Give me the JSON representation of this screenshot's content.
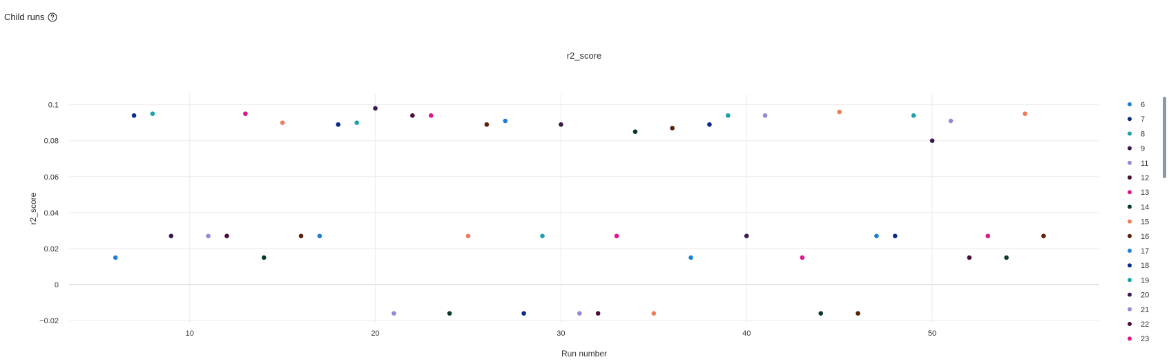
{
  "header": {
    "title": "Child runs",
    "help_icon": "question-circle-icon"
  },
  "chart_data": {
    "type": "scatter",
    "title": "r2_score",
    "xlabel": "Run number",
    "ylabel": "r2_score",
    "xlim": [
      3.5,
      59.0
    ],
    "ylim": [
      -0.0215,
      0.106
    ],
    "xticks": [
      10,
      20,
      30,
      40,
      50
    ],
    "yticks": [
      -0.02,
      0,
      0.02,
      0.04,
      0.06,
      0.08,
      0.1
    ],
    "ytick_labels": [
      "−0.02",
      "0",
      "0.02",
      "0.04",
      "0.06",
      "0.08",
      "0.1"
    ],
    "grid": true,
    "legend_position": "right",
    "points": [
      {
        "x": 6,
        "y": 0.015,
        "color": "#1f7fd4"
      },
      {
        "x": 7,
        "y": 0.094,
        "color": "#0a2a8c"
      },
      {
        "x": 8,
        "y": 0.095,
        "color": "#1aa3a8"
      },
      {
        "x": 9,
        "y": 0.027,
        "color": "#3a1a4e"
      },
      {
        "x": 11,
        "y": 0.027,
        "color": "#9a86d9"
      },
      {
        "x": 12,
        "y": 0.027,
        "color": "#4a0d35"
      },
      {
        "x": 13,
        "y": 0.095,
        "color": "#e0148c"
      },
      {
        "x": 14,
        "y": 0.015,
        "color": "#0a3a26"
      },
      {
        "x": 15,
        "y": 0.09,
        "color": "#ef7b5a"
      },
      {
        "x": 16,
        "y": 0.027,
        "color": "#5a2108"
      },
      {
        "x": 17,
        "y": 0.027,
        "color": "#1f7fd4"
      },
      {
        "x": 18,
        "y": 0.089,
        "color": "#0a2a8c"
      },
      {
        "x": 19,
        "y": 0.09,
        "color": "#1aa3a8"
      },
      {
        "x": 20,
        "y": 0.098,
        "color": "#3a1a4e"
      },
      {
        "x": 21,
        "y": -0.016,
        "color": "#9a86d9"
      },
      {
        "x": 22,
        "y": 0.094,
        "color": "#4a0d35"
      },
      {
        "x": 23,
        "y": 0.094,
        "color": "#e0148c"
      },
      {
        "x": 24,
        "y": -0.016,
        "color": "#0a3a26"
      },
      {
        "x": 25,
        "y": 0.027,
        "color": "#ef7b5a"
      },
      {
        "x": 26,
        "y": 0.089,
        "color": "#5a2108"
      },
      {
        "x": 27,
        "y": 0.091,
        "color": "#1f7fd4"
      },
      {
        "x": 28,
        "y": -0.016,
        "color": "#0a2a8c"
      },
      {
        "x": 29,
        "y": 0.027,
        "color": "#1aa3a8"
      },
      {
        "x": 30,
        "y": 0.089,
        "color": "#3a1a4e"
      },
      {
        "x": 31,
        "y": -0.016,
        "color": "#9a86d9"
      },
      {
        "x": 32,
        "y": -0.016,
        "color": "#4a0d35"
      },
      {
        "x": 33,
        "y": 0.027,
        "color": "#e0148c"
      },
      {
        "x": 34,
        "y": 0.085,
        "color": "#0a3a26"
      },
      {
        "x": 35,
        "y": -0.016,
        "color": "#ef7b5a"
      },
      {
        "x": 36,
        "y": 0.087,
        "color": "#5a2108"
      },
      {
        "x": 37,
        "y": 0.015,
        "color": "#1f7fd4"
      },
      {
        "x": 38,
        "y": 0.089,
        "color": "#0a2a8c"
      },
      {
        "x": 39,
        "y": 0.094,
        "color": "#1aa3a8"
      },
      {
        "x": 40,
        "y": 0.027,
        "color": "#3a1a4e"
      },
      {
        "x": 41,
        "y": 0.094,
        "color": "#9a86d9"
      },
      {
        "x": 43,
        "y": 0.015,
        "color": "#e0148c"
      },
      {
        "x": 44,
        "y": -0.016,
        "color": "#0a3a26"
      },
      {
        "x": 45,
        "y": 0.096,
        "color": "#ef7b5a"
      },
      {
        "x": 46,
        "y": -0.016,
        "color": "#5a2108"
      },
      {
        "x": 47,
        "y": 0.027,
        "color": "#1f7fd4"
      },
      {
        "x": 48,
        "y": 0.027,
        "color": "#0a2a8c"
      },
      {
        "x": 49,
        "y": 0.094,
        "color": "#1aa3a8"
      },
      {
        "x": 50,
        "y": 0.08,
        "color": "#3a1a4e"
      },
      {
        "x": 51,
        "y": 0.091,
        "color": "#9a86d9"
      },
      {
        "x": 52,
        "y": 0.015,
        "color": "#4a0d35"
      },
      {
        "x": 53,
        "y": 0.027,
        "color": "#e0148c"
      },
      {
        "x": 54,
        "y": 0.015,
        "color": "#0a3a26"
      },
      {
        "x": 55,
        "y": 0.095,
        "color": "#ef7b5a"
      },
      {
        "x": 56,
        "y": 0.027,
        "color": "#5a2108"
      }
    ],
    "legend": [
      {
        "label": "6",
        "color": "#1f7fd4"
      },
      {
        "label": "7",
        "color": "#0a2a8c"
      },
      {
        "label": "8",
        "color": "#1aa3a8"
      },
      {
        "label": "9",
        "color": "#3a1a4e"
      },
      {
        "label": "11",
        "color": "#9a86d9"
      },
      {
        "label": "12",
        "color": "#4a0d35"
      },
      {
        "label": "13",
        "color": "#e0148c"
      },
      {
        "label": "14",
        "color": "#0a3a26"
      },
      {
        "label": "15",
        "color": "#ef7b5a"
      },
      {
        "label": "16",
        "color": "#5a2108"
      },
      {
        "label": "17",
        "color": "#1f7fd4"
      },
      {
        "label": "18",
        "color": "#0a2a8c"
      },
      {
        "label": "19",
        "color": "#1aa3a8"
      },
      {
        "label": "20",
        "color": "#3a1a4e"
      },
      {
        "label": "21",
        "color": "#9a86d9"
      },
      {
        "label": "22",
        "color": "#4a0d35"
      },
      {
        "label": "23",
        "color": "#e0148c"
      }
    ]
  }
}
